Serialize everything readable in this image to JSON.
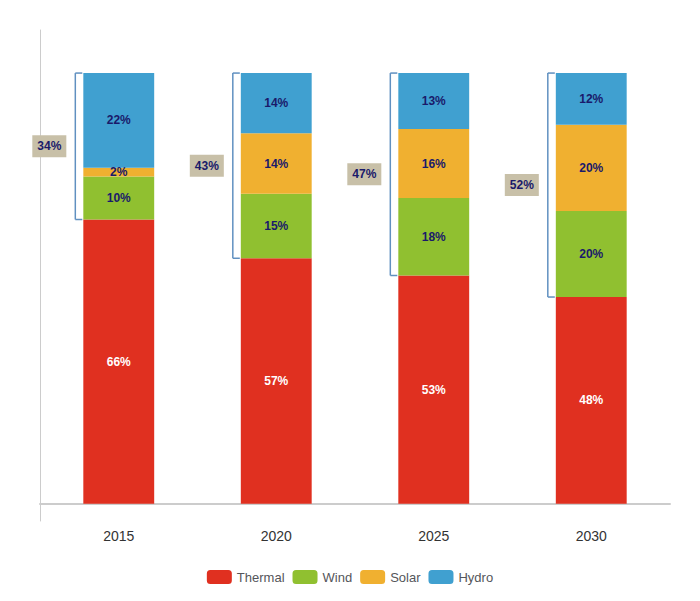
{
  "chart_data": {
    "type": "bar",
    "stacked": true,
    "data_labels": true,
    "categories": [
      "2015",
      "2020",
      "2025",
      "2030"
    ],
    "series": [
      {
        "name": "Thermal",
        "color": "#e03020",
        "values": [
          66,
          57,
          53,
          48
        ],
        "value_labels": [
          "66%",
          "57%",
          "53%",
          "48%"
        ]
      },
      {
        "name": "Wind",
        "color": "#90c030",
        "values": [
          10,
          15,
          18,
          20
        ],
        "value_labels": [
          "10%",
          "15%",
          "18%",
          "20%"
        ]
      },
      {
        "name": "Solar",
        "color": "#f0b030",
        "values": [
          2,
          14,
          16,
          20
        ],
        "value_labels": [
          "2%",
          "14%",
          "16%",
          "20%"
        ]
      },
      {
        "name": "Hydro",
        "color": "#40a0d0",
        "values": [
          22,
          14,
          13,
          12
        ],
        "value_labels": [
          "22%",
          "14%",
          "13%",
          "12%"
        ]
      }
    ],
    "renewables": {
      "values": [
        34,
        43,
        47,
        52
      ],
      "value_labels": [
        "34%",
        "43%",
        "47%",
        "52%"
      ],
      "color": "#6090c0"
    },
    "ylim": [
      -4,
      110
    ],
    "tick_labels": "x",
    "grid": false,
    "legend": "bottom"
  }
}
